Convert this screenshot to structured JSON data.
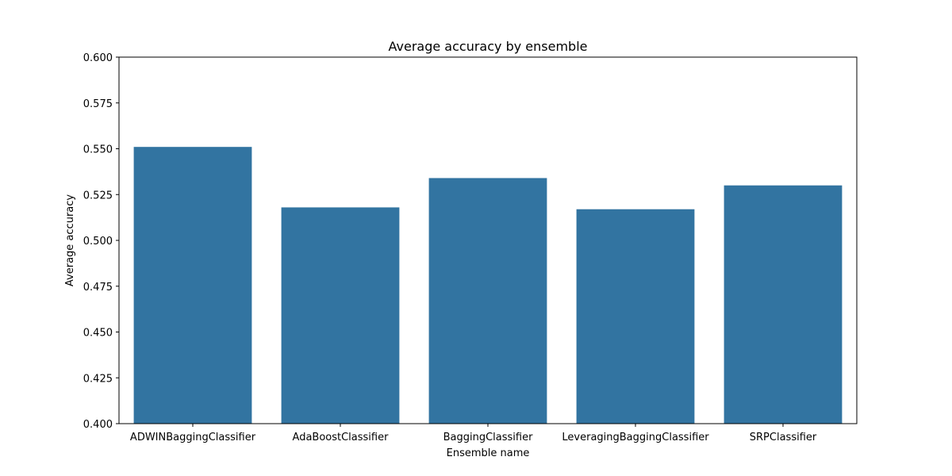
{
  "chart_data": {
    "type": "bar",
    "title": "Average accuracy by ensemble",
    "xlabel": "Ensemble name",
    "ylabel": "Average accuracy",
    "categories": [
      "ADWINBaggingClassifier",
      "AdaBoostClassifier",
      "BaggingClassifier",
      "LeveragingBaggingClassifier",
      "SRPClassifier"
    ],
    "values": [
      0.551,
      0.518,
      0.534,
      0.517,
      0.53
    ],
    "ylim": [
      0.4,
      0.6
    ],
    "yticks": [
      "0.400",
      "0.425",
      "0.450",
      "0.475",
      "0.500",
      "0.525",
      "0.550",
      "0.575",
      "0.600"
    ],
    "grid": false,
    "bar_color": "#3274a1"
  }
}
